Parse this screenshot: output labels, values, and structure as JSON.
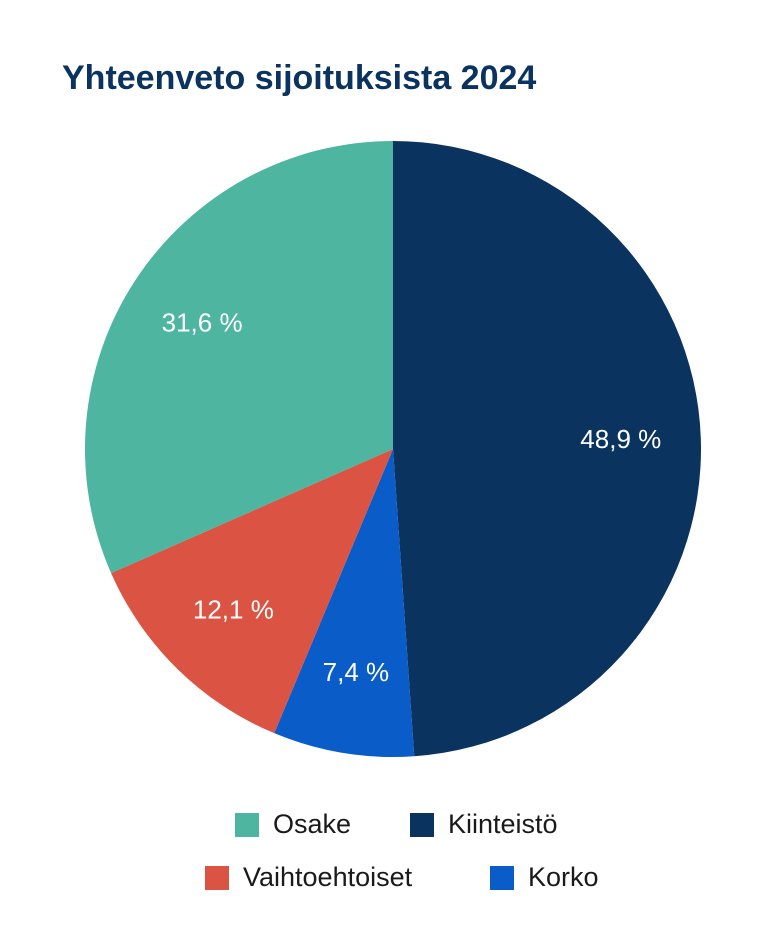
{
  "chart_data": {
    "type": "pie",
    "title": "Yhteenveto sijoituksista 2024",
    "categories": [
      "Kiinteistö",
      "Korko",
      "Vaihtoehtoiset",
      "Osake"
    ],
    "values": [
      48.9,
      7.4,
      12.1,
      31.6
    ],
    "value_labels": [
      "48,9 %",
      "7,4 %",
      "12,1 %",
      "31,6 %"
    ],
    "colors": [
      "#0a3360",
      "#0a5cc9",
      "#db5343",
      "#4db5a0"
    ]
  }
}
